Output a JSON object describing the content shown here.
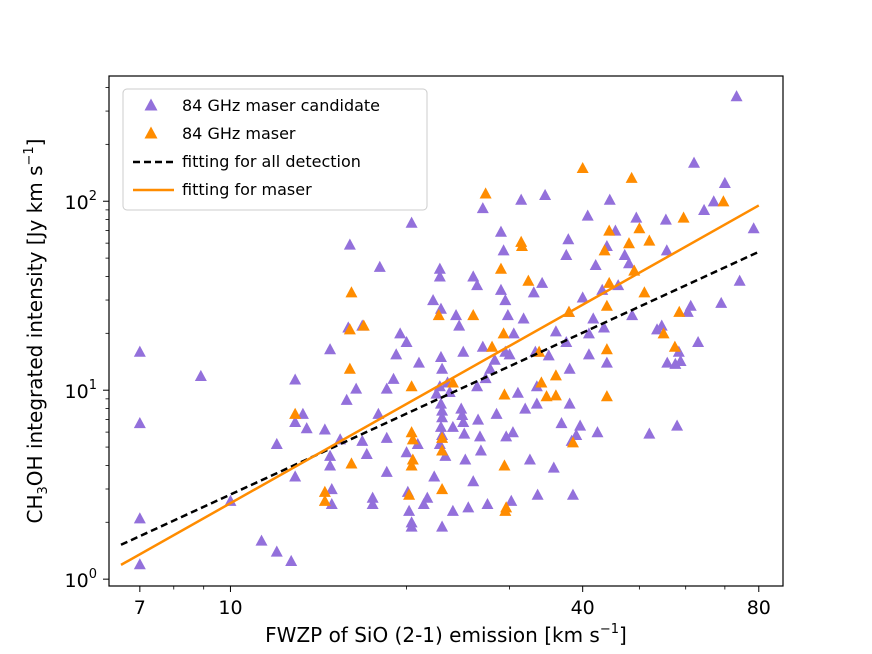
{
  "chart_data": {
    "type": "scatter",
    "xscale": "log",
    "yscale": "log",
    "xlim": [
      6.2,
      88
    ],
    "ylim": [
      0.92,
      460
    ],
    "xticks": [
      {
        "value": 7,
        "label": "7"
      },
      {
        "value": 10,
        "label": "10"
      },
      {
        "value": 40,
        "label": "40"
      },
      {
        "value": 80,
        "label": "80"
      }
    ],
    "yticks": [
      {
        "value": 1,
        "base": "10",
        "exp": "0"
      },
      {
        "value": 10,
        "base": "10",
        "exp": "1"
      },
      {
        "value": 100,
        "base": "10",
        "exp": "2"
      }
    ],
    "xlabel": {
      "main": "FWZP of SiO (2-1) emission [km s",
      "sup": "−1",
      "end": "]"
    },
    "ylabel": {
      "p1": "CH",
      "sub": "3",
      "p2": "OH integrated intensity [Jy km s",
      "sup": "−1",
      "end": "]"
    },
    "legend_position": "upper-left",
    "colors": {
      "candidate": "#9370DB",
      "maser": "#FF8C00",
      "fit_all": "#000000",
      "fit_maser": "#FF8C00"
    },
    "series": [
      {
        "name": "84 GHz maser candidate",
        "marker": "triangle",
        "color": "#9370DB",
        "points": [
          [
            7.0,
            16.0
          ],
          [
            7.0,
            6.7
          ],
          [
            7.0,
            2.1
          ],
          [
            7.0,
            1.2
          ],
          [
            8.9,
            11.9
          ],
          [
            10.0,
            2.6
          ],
          [
            11.3,
            1.6
          ],
          [
            12.0,
            1.4
          ],
          [
            12.7,
            1.25
          ],
          [
            12.9,
            11.4
          ],
          [
            12.9,
            6.8
          ],
          [
            12.9,
            3.5
          ],
          [
            12.0,
            5.2
          ],
          [
            13.3,
            7.5
          ],
          [
            13.5,
            6.3
          ],
          [
            14.5,
            6.2
          ],
          [
            14.8,
            16.5
          ],
          [
            14.8,
            4.5
          ],
          [
            14.8,
            4.0
          ],
          [
            14.9,
            3.0
          ],
          [
            14.9,
            2.5
          ],
          [
            15.4,
            5.5
          ],
          [
            15.8,
            8.9
          ],
          [
            15.9,
            21.5
          ],
          [
            16.0,
            59.0
          ],
          [
            16.4,
            10.2
          ],
          [
            16.8,
            22.0
          ],
          [
            16.8,
            5.4
          ],
          [
            17.1,
            4.6
          ],
          [
            17.5,
            2.7
          ],
          [
            17.5,
            2.5
          ],
          [
            17.9,
            7.5
          ],
          [
            18.0,
            45.0
          ],
          [
            18.5,
            10.2
          ],
          [
            18.5,
            5.6
          ],
          [
            18.5,
            3.7
          ],
          [
            19.0,
            11.5
          ],
          [
            19.2,
            15.5
          ],
          [
            19.5,
            20.0
          ],
          [
            20.0,
            18.0
          ],
          [
            20.0,
            4.7
          ],
          [
            20.2,
            2.3
          ],
          [
            20.1,
            2.9
          ],
          [
            20.4,
            77.0
          ],
          [
            20.4,
            2.0
          ],
          [
            20.4,
            1.9
          ],
          [
            20.9,
            5.2
          ],
          [
            21.4,
            2.5
          ],
          [
            21.7,
            2.7
          ],
          [
            22.2,
            30.0
          ],
          [
            22.3,
            3.5
          ],
          [
            22.8,
            44.0
          ],
          [
            22.8,
            40.0
          ],
          [
            22.9,
            27.0
          ],
          [
            22.9,
            15.0
          ],
          [
            23.0,
            13.0
          ],
          [
            22.8,
            10.5
          ],
          [
            22.9,
            8.5
          ],
          [
            23.0,
            7.8
          ],
          [
            23.0,
            7.2
          ],
          [
            22.9,
            6.4
          ],
          [
            23.0,
            5.8
          ],
          [
            22.8,
            5.2
          ],
          [
            23.0,
            1.9
          ],
          [
            23.5,
            11.0
          ],
          [
            23.3,
            4.5
          ],
          [
            23.7,
            9.8
          ],
          [
            24.0,
            6.4
          ],
          [
            24.0,
            2.3
          ],
          [
            24.3,
            25.0
          ],
          [
            24.6,
            22.0
          ],
          [
            25.0,
            16.0
          ],
          [
            24.8,
            8.0
          ],
          [
            24.9,
            7.4
          ],
          [
            25.0,
            6.8
          ],
          [
            25.1,
            5.9
          ],
          [
            25.2,
            4.3
          ],
          [
            25.5,
            2.4
          ],
          [
            26.0,
            3.3
          ],
          [
            26.4,
            36.0
          ],
          [
            26.4,
            10.5
          ],
          [
            26.5,
            7.0
          ],
          [
            26.7,
            5.7
          ],
          [
            26.8,
            4.8
          ],
          [
            27.0,
            92.0
          ],
          [
            27.3,
            11.6
          ],
          [
            27.0,
            17.0
          ],
          [
            27.5,
            2.5
          ],
          [
            27.8,
            13.0
          ],
          [
            28.3,
            14.5
          ],
          [
            28.5,
            7.5
          ],
          [
            29.0,
            34.0
          ],
          [
            29.3,
            55.0
          ],
          [
            29.5,
            16.0
          ],
          [
            29.6,
            5.7
          ],
          [
            30.5,
            20.0
          ],
          [
            29.5,
            30.0
          ],
          [
            29.0,
            69.0
          ],
          [
            29.8,
            25.0
          ],
          [
            30.0,
            15.5
          ],
          [
            30.4,
            6.0
          ],
          [
            30.2,
            2.6
          ],
          [
            31.0,
            9.7
          ],
          [
            31.4,
            102.0
          ],
          [
            31.7,
            24.0
          ],
          [
            31.9,
            8.0
          ],
          [
            32.5,
            4.3
          ],
          [
            33.0,
            33.0
          ],
          [
            33.2,
            16.0
          ],
          [
            33.4,
            10.5
          ],
          [
            33.4,
            8.5
          ],
          [
            33.5,
            2.8
          ],
          [
            34.1,
            37.0
          ],
          [
            34.5,
            108.0
          ],
          [
            35.0,
            15.3
          ],
          [
            35.7,
            3.9
          ],
          [
            36.0,
            20.5
          ],
          [
            36.8,
            6.7
          ],
          [
            37.5,
            18.0
          ],
          [
            37.8,
            63.0
          ],
          [
            37.9,
            26.0
          ],
          [
            38.0,
            13.0
          ],
          [
            38.0,
            8.5
          ],
          [
            38.3,
            5.4
          ],
          [
            38.5,
            2.8
          ],
          [
            39.0,
            5.8
          ],
          [
            39.6,
            6.5
          ],
          [
            40.0,
            31.0
          ],
          [
            40.8,
            84.0
          ],
          [
            41.0,
            20.0
          ],
          [
            41.0,
            15.5
          ],
          [
            41.7,
            24.0
          ],
          [
            42.1,
            46.0
          ],
          [
            42.4,
            6.0
          ],
          [
            43.2,
            34.0
          ],
          [
            43.5,
            21.5
          ],
          [
            44.0,
            14.0
          ],
          [
            44.5,
            102.0
          ],
          [
            45.5,
            70.0
          ],
          [
            47.2,
            52.0
          ],
          [
            48.0,
            47.0
          ],
          [
            48.6,
            25.0
          ],
          [
            49.4,
            82.0
          ],
          [
            52.0,
            5.9
          ],
          [
            53.6,
            21.0
          ],
          [
            54.6,
            22.0
          ],
          [
            55.5,
            80.0
          ],
          [
            55.7,
            55.0
          ],
          [
            55.8,
            14.0
          ],
          [
            57.6,
            13.8
          ],
          [
            58.0,
            6.5
          ],
          [
            58.4,
            16.0
          ],
          [
            58.8,
            14.3
          ],
          [
            60.5,
            26.0
          ],
          [
            61.2,
            28.0
          ],
          [
            62.0,
            160.0
          ],
          [
            63.0,
            18.0
          ],
          [
            64.5,
            90.0
          ],
          [
            67.0,
            100.0
          ],
          [
            69.0,
            29.0
          ],
          [
            70.0,
            125.0
          ],
          [
            73.3,
            360.0
          ],
          [
            74.2,
            38.0
          ],
          [
            78.4,
            72.0
          ],
          [
            37.5,
            52.0
          ],
          [
            21.0,
            14.0
          ],
          [
            44.0,
            58.0
          ],
          [
            26.0,
            40.0
          ],
          [
            46.0,
            36.0
          ],
          [
            22.5,
            9.6
          ]
        ]
      },
      {
        "name": "84 GHz maser",
        "marker": "triangle",
        "color": "#FF8C00",
        "points": [
          [
            12.9,
            7.5
          ],
          [
            14.5,
            2.9
          ],
          [
            14.5,
            2.6
          ],
          [
            16.1,
            33.0
          ],
          [
            16.0,
            21.0
          ],
          [
            16.0,
            13.0
          ],
          [
            16.1,
            4.1
          ],
          [
            16.9,
            22.0
          ],
          [
            20.4,
            10.5
          ],
          [
            20.4,
            6.0
          ],
          [
            20.5,
            5.5
          ],
          [
            20.5,
            4.3
          ],
          [
            20.4,
            4.0
          ],
          [
            20.2,
            2.8
          ],
          [
            22.7,
            25.0
          ],
          [
            23.0,
            3.0
          ],
          [
            23.0,
            5.6
          ],
          [
            23.0,
            4.8
          ],
          [
            24.0,
            11.0
          ],
          [
            26.0,
            25.0
          ],
          [
            27.3,
            110.0
          ],
          [
            28.0,
            17.0
          ],
          [
            29.0,
            44.0
          ],
          [
            29.3,
            20.0
          ],
          [
            29.4,
            9.5
          ],
          [
            29.4,
            4.0
          ],
          [
            29.5,
            2.3
          ],
          [
            29.6,
            2.4
          ],
          [
            31.4,
            61.0
          ],
          [
            31.5,
            58.0
          ],
          [
            32.3,
            38.0
          ],
          [
            33.7,
            16.0
          ],
          [
            34.0,
            11.0
          ],
          [
            34.7,
            9.3
          ],
          [
            36.0,
            12.0
          ],
          [
            36.0,
            9.4
          ],
          [
            37.9,
            26.0
          ],
          [
            38.5,
            5.3
          ],
          [
            40.0,
            150.0
          ],
          [
            44.0,
            28.0
          ],
          [
            44.0,
            16.5
          ],
          [
            44.0,
            9.3
          ],
          [
            44.4,
            70.0
          ],
          [
            44.4,
            37.0
          ],
          [
            48.0,
            60.0
          ],
          [
            48.5,
            133.0
          ],
          [
            49.0,
            43.0
          ],
          [
            51.0,
            33.0
          ],
          [
            52.0,
            62.0
          ],
          [
            55.0,
            20.0
          ],
          [
            57.5,
            17.0
          ],
          [
            58.5,
            26.0
          ],
          [
            59.5,
            82.0
          ],
          [
            69.6,
            100.0
          ],
          [
            43.6,
            55.0
          ],
          [
            50.0,
            72.0
          ]
        ]
      },
      {
        "name": "fitting for all detection",
        "style": "dashed",
        "color": "#000000",
        "x": [
          6.5,
          80
        ],
        "y": [
          1.52,
          54.0
        ]
      },
      {
        "name": "fitting for maser",
        "style": "solid",
        "color": "#FF8C00",
        "x": [
          6.5,
          80
        ],
        "y": [
          1.19,
          95.0
        ]
      }
    ]
  }
}
